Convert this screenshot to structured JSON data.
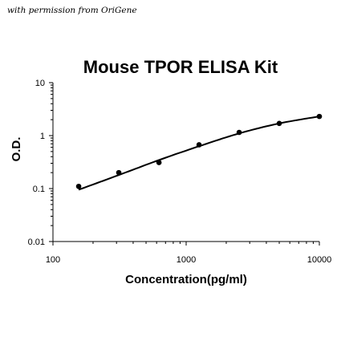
{
  "credit": "with permission from OriGene",
  "chart_data": {
    "type": "scatter",
    "title": "Mouse TPOR ELISA Kit",
    "xlabel": "Concentration(pg/ml)",
    "ylabel": "O.D.",
    "xscale": "log",
    "yscale": "log",
    "xlim": [
      100,
      10000
    ],
    "ylim": [
      0.01,
      10
    ],
    "x_ticks": [
      "100",
      "1000",
      "10000"
    ],
    "y_ticks": [
      "0.01",
      "0.1",
      "1",
      "10"
    ],
    "grid": false,
    "legend": "none",
    "series": [
      {
        "points": [
          {
            "x": 156,
            "y": 0.11
          },
          {
            "x": 312,
            "y": 0.2
          },
          {
            "x": 625,
            "y": 0.31
          },
          {
            "x": 1250,
            "y": 0.67
          },
          {
            "x": 2500,
            "y": 1.15
          },
          {
            "x": 5000,
            "y": 1.7
          },
          {
            "x": 10000,
            "y": 2.3
          }
        ],
        "fit_curve": [
          {
            "x": 156,
            "y": 0.095
          },
          {
            "x": 312,
            "y": 0.18
          },
          {
            "x": 625,
            "y": 0.345
          },
          {
            "x": 1250,
            "y": 0.63
          },
          {
            "x": 2500,
            "y": 1.1
          },
          {
            "x": 5000,
            "y": 1.7
          },
          {
            "x": 10000,
            "y": 2.3
          }
        ]
      }
    ],
    "colors": {
      "points": "#000000",
      "curve": "#000000",
      "axis": "#000000"
    }
  }
}
